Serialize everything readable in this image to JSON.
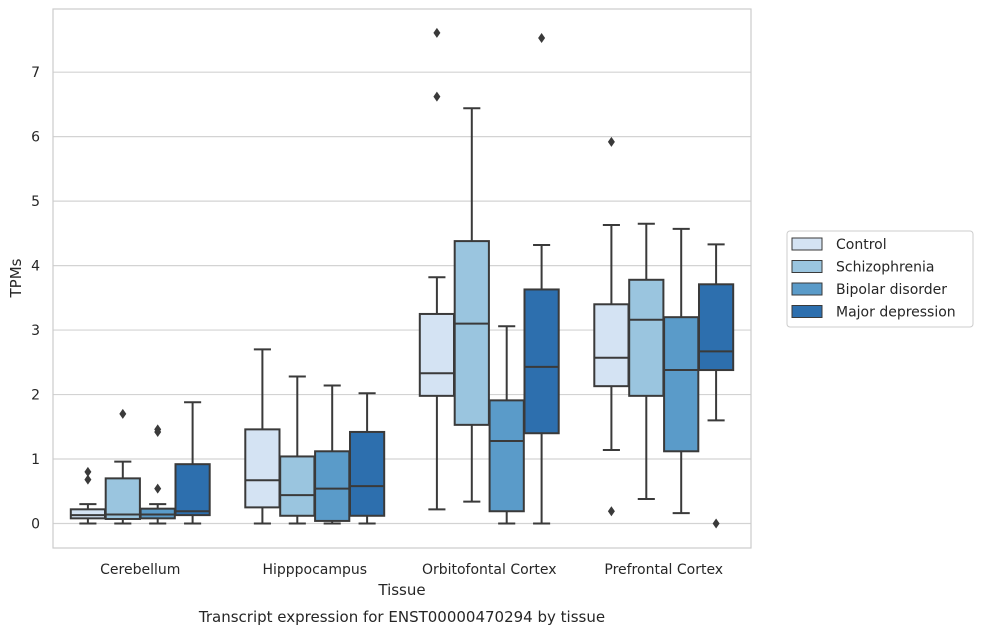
{
  "chart_data": {
    "type": "boxplot",
    "caption": "Transcript expression for ENST00000470294 by tissue",
    "xlabel": "Tissue",
    "ylabel": "TPMs",
    "ylim": [
      -0.38,
      7.98
    ],
    "yticks": [
      0,
      1,
      2,
      3,
      4,
      5,
      6,
      7
    ],
    "grid": "horizontal",
    "legend_position": "right",
    "categories": [
      "Cerebellum",
      "Hipppocampus",
      "Orbitofontal Cortex",
      "Prefrontal Cortex"
    ],
    "series": [
      {
        "name": "Control",
        "color": "#d4e3f3",
        "boxes": [
          {
            "whislo": 0.0,
            "q1": 0.08,
            "med": 0.13,
            "q3": 0.22,
            "whishi": 0.3,
            "fliers": [
              0.68,
              0.8
            ]
          },
          {
            "whislo": 0.0,
            "q1": 0.25,
            "med": 0.67,
            "q3": 1.46,
            "whishi": 2.7,
            "fliers": []
          },
          {
            "whislo": 0.22,
            "q1": 1.98,
            "med": 2.33,
            "q3": 3.25,
            "whishi": 3.82,
            "fliers": [
              6.62,
              7.61
            ]
          },
          {
            "whislo": 1.14,
            "q1": 2.13,
            "med": 2.57,
            "q3": 3.4,
            "whishi": 4.63,
            "fliers": [
              5.92,
              0.19
            ]
          }
        ]
      },
      {
        "name": "Schizophrenia",
        "color": "#9ac5df",
        "boxes": [
          {
            "whislo": 0.0,
            "q1": 0.07,
            "med": 0.14,
            "q3": 0.7,
            "whishi": 0.96,
            "fliers": [
              1.7
            ]
          },
          {
            "whislo": 0.0,
            "q1": 0.12,
            "med": 0.44,
            "q3": 1.04,
            "whishi": 2.28,
            "fliers": []
          },
          {
            "whislo": 0.34,
            "q1": 1.53,
            "med": 3.1,
            "q3": 4.38,
            "whishi": 6.44,
            "fliers": []
          },
          {
            "whislo": 0.38,
            "q1": 1.98,
            "med": 3.16,
            "q3": 3.78,
            "whishi": 4.65,
            "fliers": []
          }
        ]
      },
      {
        "name": "Bipolar disorder",
        "color": "#5a9bc9",
        "boxes": [
          {
            "whislo": 0.0,
            "q1": 0.08,
            "med": 0.14,
            "q3": 0.23,
            "whishi": 0.3,
            "fliers": [
              0.54,
              1.42,
              1.46
            ]
          },
          {
            "whislo": 0.0,
            "q1": 0.04,
            "med": 0.54,
            "q3": 1.12,
            "whishi": 2.14,
            "fliers": []
          },
          {
            "whislo": 0.0,
            "q1": 0.19,
            "med": 1.28,
            "q3": 1.91,
            "whishi": 3.06,
            "fliers": []
          },
          {
            "whislo": 0.16,
            "q1": 1.12,
            "med": 2.38,
            "q3": 3.2,
            "whishi": 4.57,
            "fliers": []
          }
        ]
      },
      {
        "name": "Major depression",
        "color": "#2d6fae",
        "boxes": [
          {
            "whislo": 0.0,
            "q1": 0.13,
            "med": 0.19,
            "q3": 0.92,
            "whishi": 1.88,
            "fliers": []
          },
          {
            "whislo": 0.0,
            "q1": 0.12,
            "med": 0.58,
            "q3": 1.42,
            "whishi": 2.02,
            "fliers": []
          },
          {
            "whislo": 0.0,
            "q1": 1.4,
            "med": 2.43,
            "q3": 3.63,
            "whishi": 4.32,
            "fliers": [
              7.53
            ]
          },
          {
            "whislo": 1.6,
            "q1": 2.38,
            "med": 2.67,
            "q3": 3.71,
            "whishi": 4.33,
            "fliers": [
              0.0
            ]
          }
        ]
      }
    ]
  }
}
